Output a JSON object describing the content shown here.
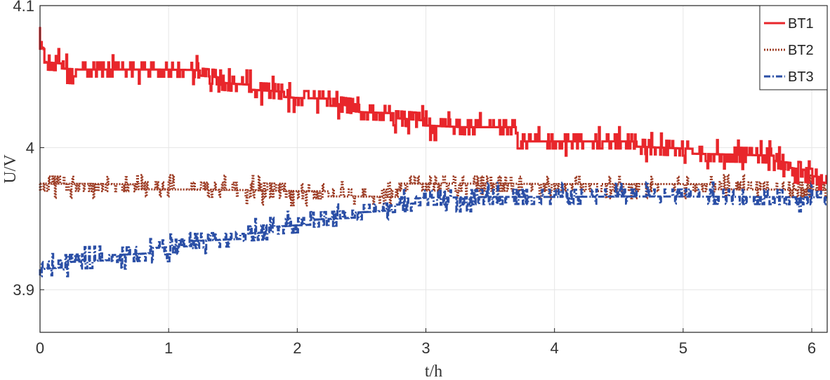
{
  "chart_data": {
    "type": "line",
    "title": "",
    "xlabel": "t/h",
    "ylabel": "U/V",
    "xlim": [
      0,
      6.12
    ],
    "ylim": [
      3.87,
      4.1
    ],
    "xticks": [
      0,
      1,
      2,
      3,
      4,
      5,
      6
    ],
    "xtick_labels": [
      "0",
      "1",
      "2",
      "3",
      "4",
      "5",
      "6"
    ],
    "yticks": [
      3.9,
      4.0,
      4.1
    ],
    "ytick_labels": [
      "3.9",
      "4",
      "4.1"
    ],
    "grid": true,
    "legend_position": "top-right",
    "series": [
      {
        "name": "BT1",
        "color": "#e8262b",
        "style": "solid",
        "noise": 0.005,
        "x": [
          0,
          0.03,
          0.05,
          0.3,
          0.6,
          0.9,
          1.2,
          1.5,
          1.8,
          2.0,
          2.3,
          2.5,
          2.8,
          3.0,
          3.3,
          3.7,
          3.72,
          4.0,
          4.3,
          4.6,
          5.0,
          5.3,
          5.7,
          5.9,
          6.12
        ],
        "y": [
          4.075,
          4.07,
          4.06,
          4.055,
          4.055,
          4.055,
          4.054,
          4.045,
          4.04,
          4.035,
          4.033,
          4.025,
          4.022,
          4.017,
          4.013,
          4.013,
          4.003,
          4.003,
          4.003,
          4.003,
          3.998,
          3.996,
          3.993,
          3.985,
          3.975
        ]
      },
      {
        "name": "BT2",
        "color": "#9c3a22",
        "style": "dotted",
        "noise": 0.004,
        "x": [
          0,
          0.5,
          1.0,
          1.5,
          2.0,
          2.5,
          2.78,
          2.8,
          3.5,
          4.0,
          4.5,
          5.0,
          5.5,
          6.12
        ],
        "y": [
          3.974,
          3.973,
          3.972,
          3.971,
          3.968,
          3.967,
          3.966,
          3.974,
          3.974,
          3.973,
          3.973,
          3.973,
          3.972,
          3.971
        ]
      },
      {
        "name": "BT3",
        "color": "#2b4fa6",
        "style": "dashdot",
        "noise": 0.004,
        "x": [
          0,
          0.2,
          0.5,
          0.8,
          1.0,
          1.3,
          1.6,
          1.8,
          2.0,
          2.3,
          2.6,
          2.8,
          3.0,
          3.5,
          4.0,
          4.5,
          5.0,
          5.5,
          6.12
        ],
        "y": [
          3.913,
          3.918,
          3.922,
          3.926,
          3.93,
          3.934,
          3.938,
          3.942,
          3.946,
          3.95,
          3.955,
          3.96,
          3.964,
          3.966,
          3.966,
          3.967,
          3.967,
          3.966,
          3.965
        ]
      }
    ]
  }
}
